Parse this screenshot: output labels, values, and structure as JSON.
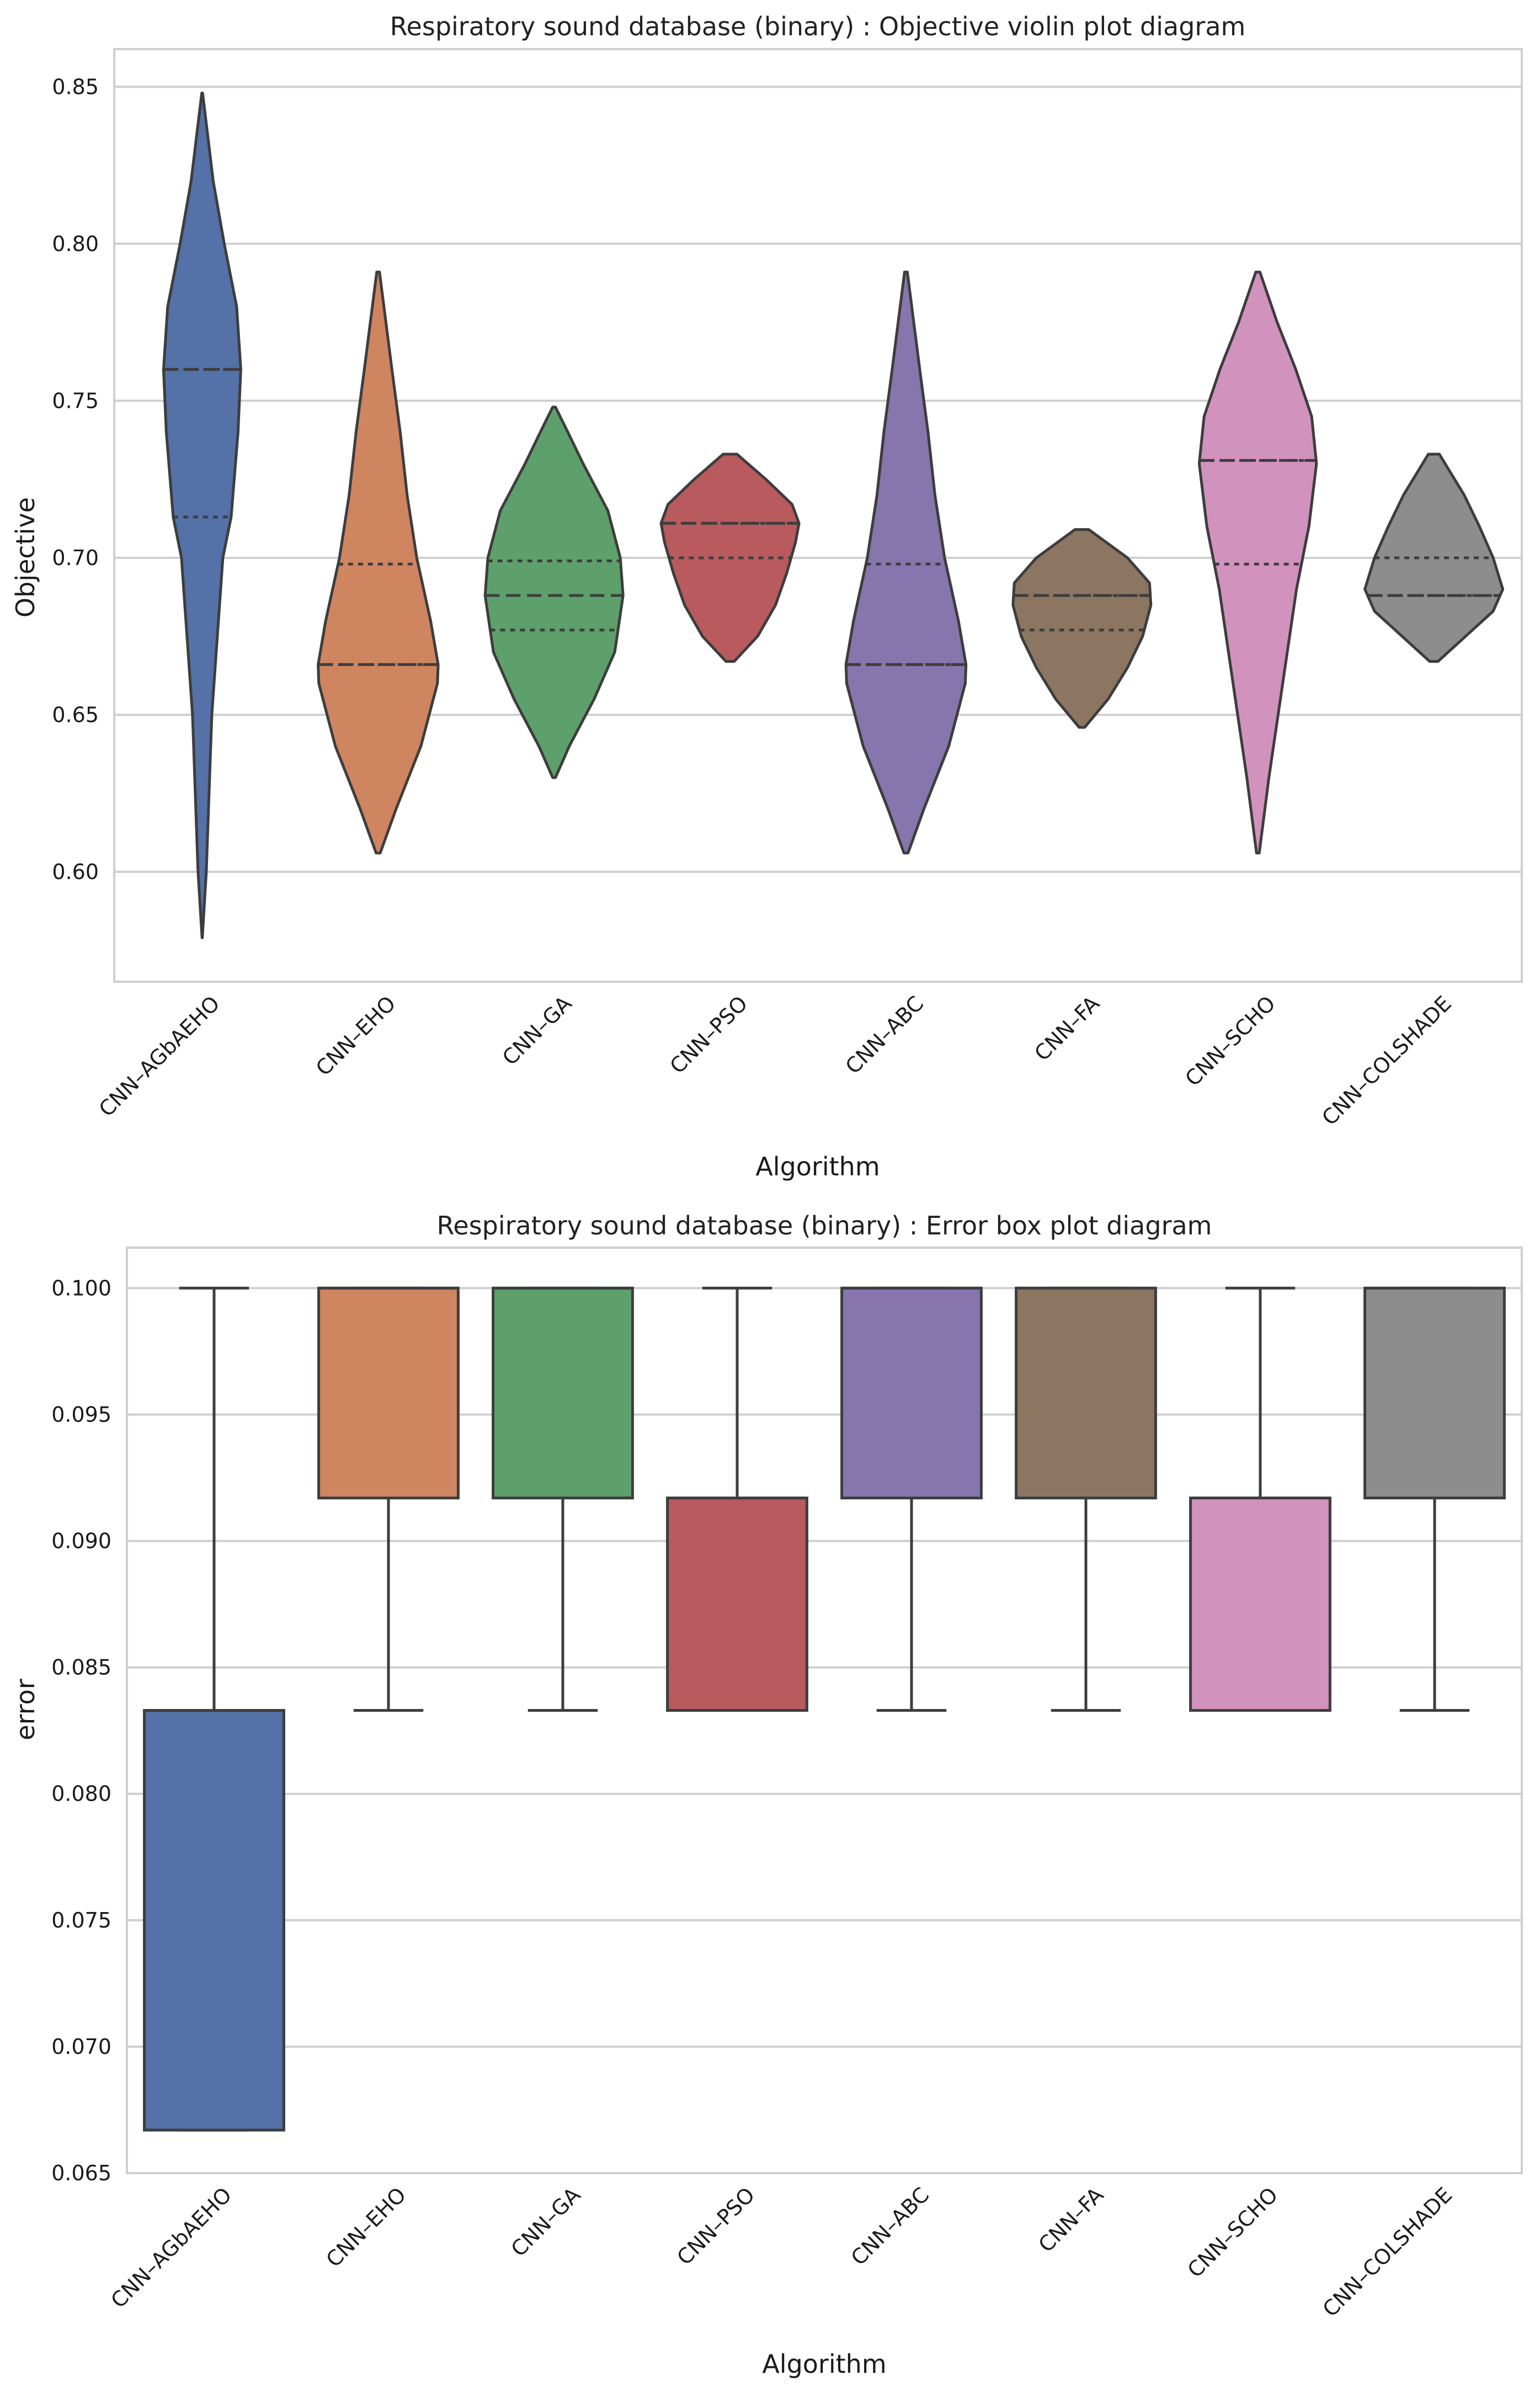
{
  "chart_data": [
    {
      "type": "violin",
      "title": "Respiratory sound database (binary) : Objective violin plot diagram",
      "xlabel": "Algorithm",
      "ylabel": "Objective",
      "ylim": [
        0.565,
        0.862
      ],
      "yticks": [
        "0.60",
        "0.65",
        "0.70",
        "0.75",
        "0.80",
        "0.85"
      ],
      "grid": true,
      "categories": [
        "CNN–AGbAEHO",
        "CNN–EHO",
        "CNN–GA",
        "CNN–PSO",
        "CNN–ABC",
        "CNN–FA",
        "CNN–SCHO",
        "CNN–COLSHADE"
      ],
      "colors": [
        "#5471a8",
        "#cf8560",
        "#5da06b",
        "#b85a5e",
        "#8676ad",
        "#8c7662",
        "#d292be",
        "#8d8d8d"
      ],
      "series": [
        {
          "name": "CNN–AGbAEHO",
          "min": 0.579,
          "q1": 0.713,
          "median": 0.76,
          "q3": 0.76,
          "max": 0.848,
          "profile": [
            [
              0.579,
              0.002
            ],
            [
              0.6,
              0.06
            ],
            [
              0.65,
              0.14
            ],
            [
              0.7,
              0.3
            ],
            [
              0.713,
              0.42
            ],
            [
              0.74,
              0.52
            ],
            [
              0.76,
              0.56
            ],
            [
              0.78,
              0.5
            ],
            [
              0.8,
              0.32
            ],
            [
              0.82,
              0.16
            ],
            [
              0.848,
              0.006
            ]
          ]
        },
        {
          "name": "CNN–EHO",
          "min": 0.606,
          "q1": 0.666,
          "median": 0.666,
          "q3": 0.698,
          "max": 0.791,
          "profile": [
            [
              0.606,
              0.03
            ],
            [
              0.62,
              0.26
            ],
            [
              0.64,
              0.62
            ],
            [
              0.66,
              0.86
            ],
            [
              0.666,
              0.87
            ],
            [
              0.68,
              0.76
            ],
            [
              0.7,
              0.56
            ],
            [
              0.72,
              0.42
            ],
            [
              0.74,
              0.32
            ],
            [
              0.76,
              0.2
            ],
            [
              0.791,
              0.02
            ]
          ]
        },
        {
          "name": "CNN–GA",
          "min": 0.63,
          "q1": 0.677,
          "median": 0.688,
          "q3": 0.699,
          "max": 0.748,
          "profile": [
            [
              0.63,
              0.02
            ],
            [
              0.64,
              0.22
            ],
            [
              0.655,
              0.58
            ],
            [
              0.67,
              0.88
            ],
            [
              0.688,
              1.0
            ],
            [
              0.7,
              0.96
            ],
            [
              0.715,
              0.78
            ],
            [
              0.73,
              0.42
            ],
            [
              0.74,
              0.2
            ],
            [
              0.748,
              0.02
            ]
          ]
        },
        {
          "name": "CNN–PSO",
          "min": 0.667,
          "q1": 0.7,
          "median": 0.711,
          "q3": 0.711,
          "max": 0.733,
          "profile": [
            [
              0.667,
              0.06
            ],
            [
              0.675,
              0.4
            ],
            [
              0.685,
              0.66
            ],
            [
              0.695,
              0.82
            ],
            [
              0.705,
              0.95
            ],
            [
              0.711,
              1.0
            ],
            [
              0.717,
              0.9
            ],
            [
              0.725,
              0.52
            ],
            [
              0.733,
              0.1
            ]
          ]
        },
        {
          "name": "CNN–ABC",
          "min": 0.606,
          "q1": 0.666,
          "median": 0.666,
          "q3": 0.698,
          "max": 0.791,
          "profile": [
            [
              0.606,
              0.03
            ],
            [
              0.62,
              0.26
            ],
            [
              0.64,
              0.62
            ],
            [
              0.66,
              0.86
            ],
            [
              0.666,
              0.87
            ],
            [
              0.68,
              0.76
            ],
            [
              0.7,
              0.56
            ],
            [
              0.72,
              0.42
            ],
            [
              0.74,
              0.32
            ],
            [
              0.76,
              0.2
            ],
            [
              0.791,
              0.02
            ]
          ]
        },
        {
          "name": "CNN–FA",
          "min": 0.646,
          "q1": 0.677,
          "median": 0.688,
          "q3": 0.688,
          "max": 0.709,
          "profile": [
            [
              0.646,
              0.04
            ],
            [
              0.655,
              0.38
            ],
            [
              0.665,
              0.66
            ],
            [
              0.675,
              0.88
            ],
            [
              0.685,
              1.0
            ],
            [
              0.692,
              0.98
            ],
            [
              0.7,
              0.66
            ],
            [
              0.709,
              0.1
            ]
          ]
        },
        {
          "name": "CNN–SCHO",
          "min": 0.606,
          "q1": 0.698,
          "median": 0.731,
          "q3": 0.731,
          "max": 0.791,
          "profile": [
            [
              0.606,
              0.02
            ],
            [
              0.63,
              0.16
            ],
            [
              0.66,
              0.36
            ],
            [
              0.69,
              0.56
            ],
            [
              0.71,
              0.74
            ],
            [
              0.73,
              0.85
            ],
            [
              0.745,
              0.78
            ],
            [
              0.76,
              0.55
            ],
            [
              0.775,
              0.28
            ],
            [
              0.791,
              0.03
            ]
          ]
        },
        {
          "name": "CNN–COLSHADE",
          "min": 0.667,
          "q1": 0.688,
          "median": 0.688,
          "q3": 0.7,
          "max": 0.733,
          "profile": [
            [
              0.667,
              0.06
            ],
            [
              0.675,
              0.46
            ],
            [
              0.683,
              0.86
            ],
            [
              0.69,
              1.0
            ],
            [
              0.7,
              0.86
            ],
            [
              0.71,
              0.66
            ],
            [
              0.72,
              0.44
            ],
            [
              0.733,
              0.08
            ]
          ]
        }
      ]
    },
    {
      "type": "box",
      "title": "Respiratory sound database (binary) : Error box plot diagram",
      "xlabel": "Algorithm",
      "ylabel": "error",
      "ylim": [
        0.065,
        0.1016
      ],
      "yticks": [
        "0.065",
        "0.070",
        "0.075",
        "0.080",
        "0.085",
        "0.090",
        "0.095",
        "0.100"
      ],
      "grid": true,
      "categories": [
        "CNN–AGbAEHO",
        "CNN–EHO",
        "CNN–GA",
        "CNN–PSO",
        "CNN–ABC",
        "CNN–FA",
        "CNN–SCHO",
        "CNN–COLSHADE"
      ],
      "colors": [
        "#5471a8",
        "#cf8560",
        "#5da06b",
        "#b85a5e",
        "#8676ad",
        "#8c7662",
        "#d292be",
        "#8d8d8d"
      ],
      "series": [
        {
          "name": "CNN–AGbAEHO",
          "whisker_low": 0.0667,
          "q1": 0.0667,
          "median": 0.0833,
          "q3": 0.0833,
          "whisker_high": 0.1
        },
        {
          "name": "CNN–EHO",
          "whisker_low": 0.0833,
          "q1": 0.0917,
          "median": 0.1,
          "q3": 0.1,
          "whisker_high": 0.1
        },
        {
          "name": "CNN–GA",
          "whisker_low": 0.0833,
          "q1": 0.0917,
          "median": 0.1,
          "q3": 0.1,
          "whisker_high": 0.1
        },
        {
          "name": "CNN–PSO",
          "whisker_low": 0.0833,
          "q1": 0.0833,
          "median": 0.0917,
          "q3": 0.0917,
          "whisker_high": 0.1
        },
        {
          "name": "CNN–ABC",
          "whisker_low": 0.0833,
          "q1": 0.0917,
          "median": 0.1,
          "q3": 0.1,
          "whisker_high": 0.1
        },
        {
          "name": "CNN–FA",
          "whisker_low": 0.0833,
          "q1": 0.0917,
          "median": 0.1,
          "q3": 0.1,
          "whisker_high": 0.1
        },
        {
          "name": "CNN–SCHO",
          "whisker_low": 0.0833,
          "q1": 0.0833,
          "median": 0.0917,
          "q3": 0.0917,
          "whisker_high": 0.1
        },
        {
          "name": "CNN–COLSHADE",
          "whisker_low": 0.0833,
          "q1": 0.0917,
          "median": 0.1,
          "q3": 0.1,
          "whisker_high": 0.1
        }
      ]
    }
  ]
}
